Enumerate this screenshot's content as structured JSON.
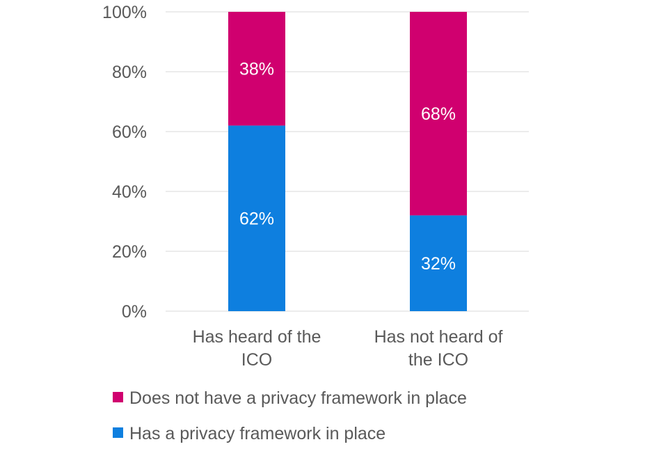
{
  "chart_data": {
    "type": "bar",
    "stacked": true,
    "categories": [
      [
        "Has heard of the",
        "ICO"
      ],
      [
        "Has not heard of",
        "the ICO"
      ]
    ],
    "series": [
      {
        "name": "Has a privacy framework in place",
        "values": [
          62,
          32
        ],
        "labels": [
          "62%",
          "32%"
        ],
        "color": "#0e7fdf"
      },
      {
        "name": "Does not have a privacy framework in place",
        "values": [
          38,
          68
        ],
        "labels": [
          "38%",
          "68%"
        ],
        "color": "#d0006f"
      }
    ],
    "yticks": [
      "0%",
      "20%",
      "40%",
      "60%",
      "80%",
      "100%"
    ],
    "ylim": [
      0,
      100
    ],
    "grid": true,
    "legend_position": "bottom",
    "legend_order": [
      1,
      0
    ]
  },
  "colors": {
    "grid": "#d9d9d9",
    "axis_text": "#595959"
  }
}
